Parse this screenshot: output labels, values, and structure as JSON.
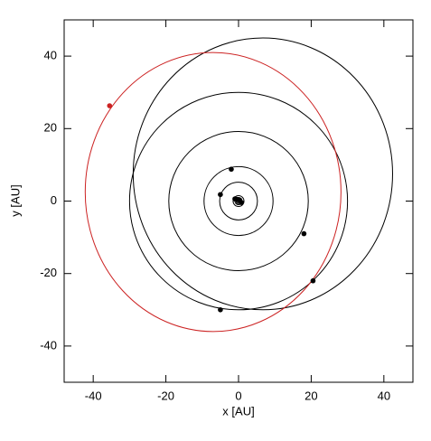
{
  "chart_data": {
    "type": "scatter",
    "x_label": "x [AU]",
    "y_label": "y [AU]",
    "xlim": [
      -48,
      48
    ],
    "ylim": [
      -50,
      50
    ],
    "xticks": [
      -40,
      -20,
      0,
      20,
      40
    ],
    "yticks": [
      -40,
      -20,
      0,
      20,
      40
    ],
    "orbits": [
      {
        "color": "#000000",
        "center": [
          0,
          0
        ],
        "radii": [
          0.4,
          0.4
        ]
      },
      {
        "color": "#000000",
        "center": [
          0,
          0
        ],
        "radii": [
          0.7,
          0.7
        ]
      },
      {
        "color": "#000000",
        "center": [
          0,
          0
        ],
        "radii": [
          1,
          1
        ]
      },
      {
        "color": "#000000",
        "center": [
          0,
          0
        ],
        "radii": [
          1.5,
          1.5
        ]
      },
      {
        "color": "#000000",
        "center": [
          0,
          0
        ],
        "radii": [
          5.2,
          5.2
        ]
      },
      {
        "color": "#000000",
        "center": [
          0,
          0
        ],
        "radii": [
          9.5,
          9.5
        ]
      },
      {
        "color": "#000000",
        "center": [
          0,
          0
        ],
        "radii": [
          19.2,
          19.2
        ]
      },
      {
        "color": "#000000",
        "center": [
          0,
          0
        ],
        "radii": [
          30,
          30
        ]
      },
      {
        "color": "#000000",
        "center": [
          6.7,
          7.5
        ],
        "radii": [
          35.7,
          37.5
        ]
      },
      {
        "color": "#cc2222",
        "center": [
          -7,
          2.5
        ],
        "radii": [
          35.2,
          38.5
        ]
      }
    ],
    "series": [
      {
        "color": "#000000",
        "x": [
          0.3,
          -0.5,
          0.8,
          -1,
          -5,
          -2,
          18,
          20.5,
          -5
        ],
        "y": [
          0.3,
          0.5,
          -0.4,
          0.6,
          1.8,
          8.8,
          -9,
          -22,
          -30
        ]
      },
      {
        "color": "#cc2222",
        "x": [
          -35.5
        ],
        "y": [
          26.3
        ]
      }
    ]
  }
}
